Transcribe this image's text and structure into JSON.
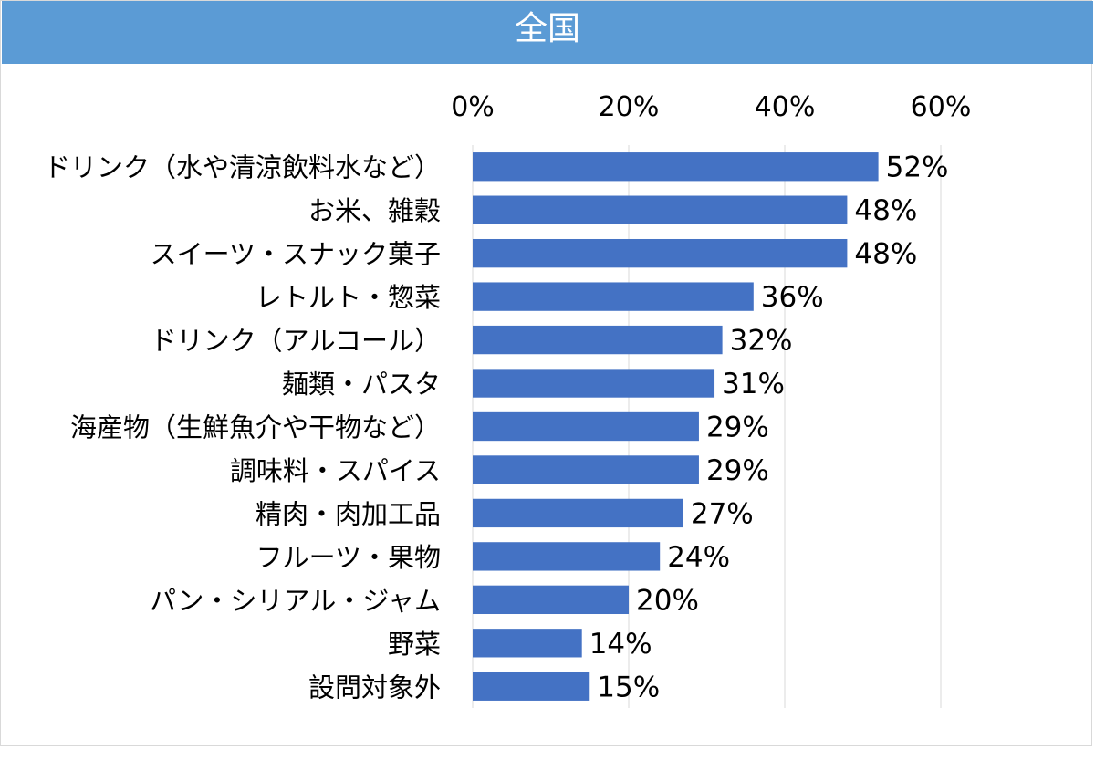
{
  "title": "全国",
  "colors": {
    "header": "#5b9bd5",
    "bar": "#4472c4",
    "grid": "#d9d9d9"
  },
  "chart_data": {
    "type": "bar",
    "orientation": "horizontal",
    "title": "全国",
    "xlim": [
      0,
      60
    ],
    "xticks": [
      "0%",
      "20%",
      "40%",
      "60%"
    ],
    "xtick_values": [
      0,
      20,
      40,
      60
    ],
    "axis_position": "top",
    "grid": true,
    "categories": [
      "ドリンク（水や清涼飲料水など）",
      "お米、雑穀",
      "スイーツ・スナック菓子",
      "レトルト・惣菜",
      "ドリンク（アルコール）",
      "麺類・パスタ",
      "海産物（生鮮魚介や干物など）",
      "調味料・スパイス",
      "精肉・肉加工品",
      "フルーツ・果物",
      "パン・シリアル・ジャム",
      "野菜",
      "設問対象外"
    ],
    "values": [
      52,
      48,
      48,
      36,
      32,
      31,
      29,
      29,
      27,
      24,
      20,
      14,
      15
    ],
    "labels": [
      "52%",
      "48%",
      "48%",
      "36%",
      "32%",
      "31%",
      "29%",
      "29%",
      "27%",
      "24%",
      "20%",
      "14%",
      "15%"
    ]
  }
}
